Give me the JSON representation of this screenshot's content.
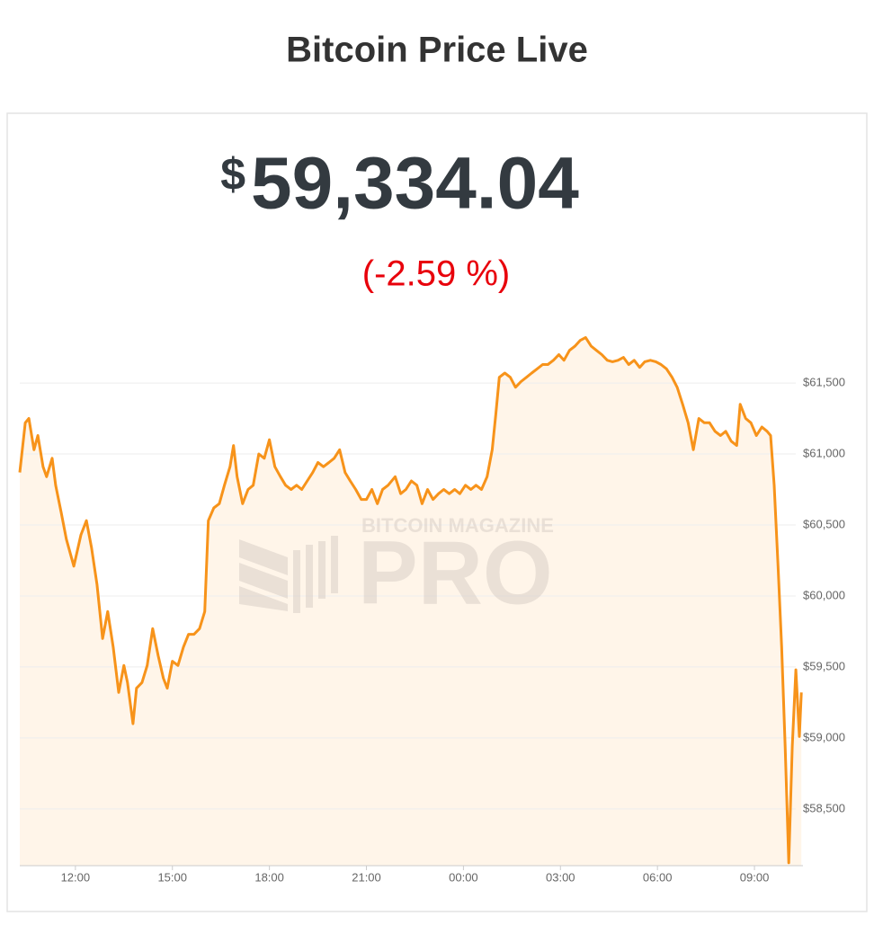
{
  "title": "Bitcoin Price Live",
  "price": {
    "currency": "$",
    "amount": "59,334.04"
  },
  "change": "(-2.59 %)",
  "watermark": [
    "BITCOIN MAGAZINE",
    "PRO"
  ],
  "chart_data": {
    "type": "line",
    "color": "#f7931a",
    "fill": "#fff5e9",
    "grid": true,
    "xlim": [
      10.28,
      34.5
    ],
    "ylim": [
      58100,
      61950
    ],
    "xticks": [
      {
        "value": 12,
        "label": "12:00"
      },
      {
        "value": 15,
        "label": "15:00"
      },
      {
        "value": 18,
        "label": "18:00"
      },
      {
        "value": 21,
        "label": "21:00"
      },
      {
        "value": 24,
        "label": "00:00"
      },
      {
        "value": 27,
        "label": "03:00"
      },
      {
        "value": 30,
        "label": "06:00"
      },
      {
        "value": 33,
        "label": "09:00"
      }
    ],
    "yticks": [
      {
        "value": 58500,
        "label": "$58,500"
      },
      {
        "value": 59000,
        "label": "$59,000"
      },
      {
        "value": 59500,
        "label": "$59,500"
      },
      {
        "value": 60000,
        "label": "$60,000"
      },
      {
        "value": 60500,
        "label": "$60,500"
      },
      {
        "value": 61000,
        "label": "$61,000"
      },
      {
        "value": 61500,
        "label": "$61,500"
      }
    ],
    "x": [
      10.28,
      10.45,
      10.56,
      10.72,
      10.84,
      11.0,
      11.11,
      11.28,
      11.39,
      11.56,
      11.72,
      11.95,
      12.17,
      12.34,
      12.5,
      12.67,
      12.84,
      13.0,
      13.17,
      13.34,
      13.5,
      13.61,
      13.78,
      13.89,
      14.06,
      14.22,
      14.39,
      14.56,
      14.72,
      14.84,
      15.0,
      15.17,
      15.34,
      15.5,
      15.67,
      15.84,
      16.0,
      16.11,
      16.28,
      16.45,
      16.61,
      16.78,
      16.89,
      17.0,
      17.17,
      17.34,
      17.5,
      17.67,
      17.84,
      18.0,
      18.17,
      18.34,
      18.5,
      18.67,
      18.84,
      19.0,
      19.17,
      19.34,
      19.5,
      19.67,
      19.84,
      20.0,
      20.17,
      20.34,
      20.5,
      20.67,
      20.84,
      21.0,
      21.17,
      21.34,
      21.5,
      21.67,
      21.89,
      22.06,
      22.22,
      22.39,
      22.56,
      22.72,
      22.89,
      23.06,
      23.23,
      23.39,
      23.56,
      23.73,
      23.89,
      24.06,
      24.23,
      24.39,
      24.56,
      24.73,
      24.89,
      25.0,
      25.11,
      25.28,
      25.45,
      25.61,
      25.78,
      25.95,
      26.11,
      26.28,
      26.45,
      26.61,
      26.78,
      26.95,
      27.11,
      27.28,
      27.45,
      27.61,
      27.78,
      27.95,
      28.11,
      28.28,
      28.45,
      28.61,
      28.78,
      28.95,
      29.11,
      29.28,
      29.45,
      29.61,
      29.78,
      29.95,
      30.11,
      30.28,
      30.45,
      30.61,
      30.78,
      30.95,
      31.11,
      31.28,
      31.45,
      31.61,
      31.78,
      31.95,
      32.11,
      32.28,
      32.45,
      32.56,
      32.73,
      32.89,
      33.06,
      33.23,
      33.39,
      33.5,
      33.61,
      33.73,
      33.84,
      33.95,
      34.06,
      34.17,
      34.28,
      34.39,
      34.45
    ],
    "values": [
      60870,
      61220,
      61250,
      61030,
      61130,
      60910,
      60840,
      60970,
      60780,
      60590,
      60400,
      60210,
      60430,
      60530,
      60340,
      60080,
      59700,
      59890,
      59640,
      59320,
      59510,
      59390,
      59100,
      59350,
      59390,
      59510,
      59770,
      59580,
      59420,
      59350,
      59540,
      59510,
      59640,
      59730,
      59730,
      59770,
      59890,
      60530,
      60620,
      60650,
      60780,
      60910,
      61060,
      60840,
      60650,
      60750,
      60780,
      61000,
      60970,
      61100,
      60910,
      60840,
      60780,
      60750,
      60780,
      60750,
      60810,
      60870,
      60940,
      60910,
      60940,
      60970,
      61030,
      60870,
      60810,
      60750,
      60680,
      60680,
      60750,
      60650,
      60750,
      60780,
      60840,
      60720,
      60750,
      60810,
      60780,
      60650,
      60750,
      60680,
      60720,
      60750,
      60720,
      60750,
      60720,
      60780,
      60750,
      60780,
      60750,
      60840,
      61030,
      61280,
      61540,
      61570,
      61540,
      61470,
      61510,
      61540,
      61570,
      61600,
      61630,
      61630,
      61660,
      61700,
      61660,
      61730,
      61760,
      61800,
      61820,
      61760,
      61730,
      61700,
      61660,
      61650,
      61660,
      61680,
      61630,
      61660,
      61610,
      61650,
      61660,
      61650,
      61630,
      61600,
      61540,
      61470,
      61350,
      61220,
      61030,
      61250,
      61220,
      61220,
      61160,
      61130,
      61160,
      61090,
      61060,
      61350,
      61250,
      61220,
      61130,
      61190,
      61160,
      61130,
      60780,
      60210,
      59640,
      58940,
      58120,
      58940,
      59480,
      59010,
      59320
    ]
  }
}
